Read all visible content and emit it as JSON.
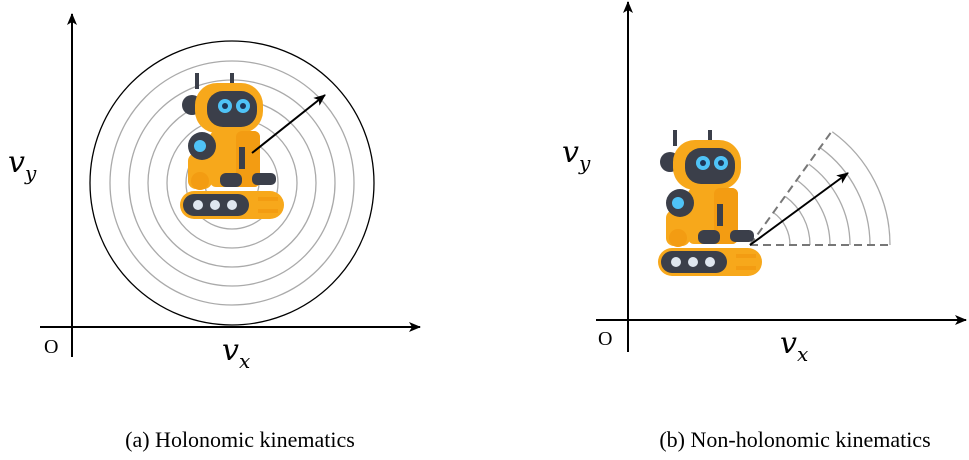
{
  "panels": [
    {
      "ylabel": {
        "base": "v",
        "sub": "y"
      },
      "xlabel": {
        "base": "v",
        "sub": "x"
      },
      "origin": "O",
      "caption": "(a) Holonomic kinematics"
    },
    {
      "ylabel": {
        "base": "v",
        "sub": "y"
      },
      "xlabel": {
        "base": "v",
        "sub": "x"
      },
      "origin": "O",
      "caption": "(b) Non-holonomic kinematics"
    }
  ]
}
